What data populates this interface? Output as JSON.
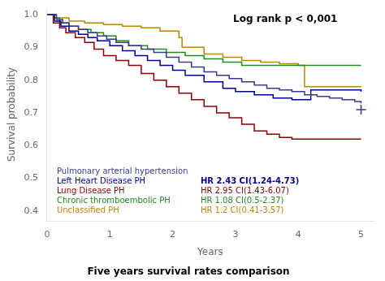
{
  "chart_data": {
    "type": "step",
    "title": "Five years survival rates comparison",
    "xlabel": "Years",
    "ylabel": "Survival probability",
    "annotation": "Log rank p < 0,001",
    "xlim": [
      0,
      5.2
    ],
    "ylim": [
      0.37,
      1.02
    ],
    "xticks": [
      0,
      1,
      2,
      3,
      4,
      5
    ],
    "yticks": [
      0.4,
      0.5,
      0.6,
      0.7,
      0.8,
      0.9,
      {
        "value": 1.0,
        "label": "1.0"
      }
    ],
    "grid": false,
    "legend": "lower left",
    "series": [
      {
        "name": "Pulmonary arterial hypertension",
        "color": "#3a3a8c",
        "x": [
          0,
          0.15,
          0.25,
          0.35,
          0.5,
          0.65,
          0.8,
          0.95,
          1.1,
          1.3,
          1.5,
          1.7,
          1.9,
          2.1,
          2.3,
          2.5,
          2.7,
          2.9,
          3.1,
          3.3,
          3.5,
          3.7,
          3.9,
          4.1,
          4.3,
          4.5,
          4.7,
          4.9,
          5.0
        ],
        "values": [
          1.0,
          0.985,
          0.975,
          0.965,
          0.955,
          0.945,
          0.935,
          0.925,
          0.915,
          0.905,
          0.895,
          0.885,
          0.87,
          0.855,
          0.84,
          0.825,
          0.815,
          0.805,
          0.795,
          0.785,
          0.775,
          0.77,
          0.765,
          0.755,
          0.75,
          0.745,
          0.74,
          0.735,
          0.73
        ]
      },
      {
        "name": "Left Heart Disease PH",
        "annotation": "HR 2.43 CI(1.24-4.73)",
        "color": "#00008b",
        "x": [
          0,
          0.12,
          0.22,
          0.35,
          0.5,
          0.65,
          0.8,
          1.0,
          1.2,
          1.4,
          1.6,
          1.8,
          2.0,
          2.2,
          2.5,
          2.8,
          3.0,
          3.3,
          3.6,
          3.9,
          4.2,
          4.5,
          4.8,
          5.0
        ],
        "values": [
          1.0,
          0.98,
          0.965,
          0.95,
          0.94,
          0.93,
          0.92,
          0.905,
          0.89,
          0.875,
          0.86,
          0.845,
          0.83,
          0.815,
          0.795,
          0.775,
          0.765,
          0.755,
          0.745,
          0.74,
          0.77,
          0.77,
          0.77,
          0.765
        ]
      },
      {
        "name": "Lung Disease PH",
        "annotation": "HR 2.95 CI(1.43-6.07)",
        "color": "#8b0000",
        "x": [
          0,
          0.1,
          0.2,
          0.3,
          0.45,
          0.6,
          0.75,
          0.9,
          1.1,
          1.3,
          1.5,
          1.7,
          1.9,
          2.1,
          2.3,
          2.5,
          2.7,
          2.9,
          3.1,
          3.3,
          3.5,
          3.7,
          3.9,
          4.1,
          4.3,
          4.5,
          4.7,
          5.0
        ],
        "values": [
          1.0,
          0.975,
          0.96,
          0.945,
          0.93,
          0.915,
          0.895,
          0.875,
          0.86,
          0.845,
          0.82,
          0.8,
          0.78,
          0.76,
          0.74,
          0.72,
          0.7,
          0.685,
          0.665,
          0.645,
          0.635,
          0.625,
          0.62,
          0.62,
          0.62,
          0.62,
          0.62,
          0.62
        ]
      },
      {
        "name": "Chronic thromboembolic PH",
        "annotation": "HR 1.08 CI(0.5-2.37)",
        "color": "#228b22",
        "x": [
          0,
          0.1,
          0.2,
          0.35,
          0.5,
          0.7,
          0.9,
          1.1,
          1.3,
          1.6,
          1.9,
          2.2,
          2.5,
          2.8,
          3.1,
          3.5,
          3.8,
          4.1,
          4.4,
          4.7,
          5.0
        ],
        "values": [
          1.0,
          0.99,
          0.975,
          0.965,
          0.955,
          0.945,
          0.935,
          0.92,
          0.905,
          0.895,
          0.885,
          0.875,
          0.865,
          0.855,
          0.845,
          0.845,
          0.845,
          0.845,
          0.845,
          0.845,
          0.845
        ]
      },
      {
        "name": "Unclassified PH",
        "annotation": "HR 1.2 CI(0.41-3.57)",
        "color": "#b8860b",
        "x": [
          0,
          0.15,
          0.35,
          0.6,
          0.9,
          1.2,
          1.5,
          1.8,
          2.1,
          2.15,
          2.5,
          2.8,
          3.1,
          3.4,
          3.7,
          4.0,
          4.1,
          4.5,
          4.8,
          5.0
        ],
        "values": [
          1.0,
          0.99,
          0.98,
          0.975,
          0.97,
          0.965,
          0.96,
          0.95,
          0.93,
          0.9,
          0.88,
          0.87,
          0.86,
          0.855,
          0.85,
          0.845,
          0.78,
          0.78,
          0.78,
          0.78
        ]
      },
      {
        "type": "scatter",
        "marker": "plus",
        "color": "#3a3a8c",
        "x": [
          5.0
        ],
        "values": [
          0.71
        ]
      }
    ]
  }
}
